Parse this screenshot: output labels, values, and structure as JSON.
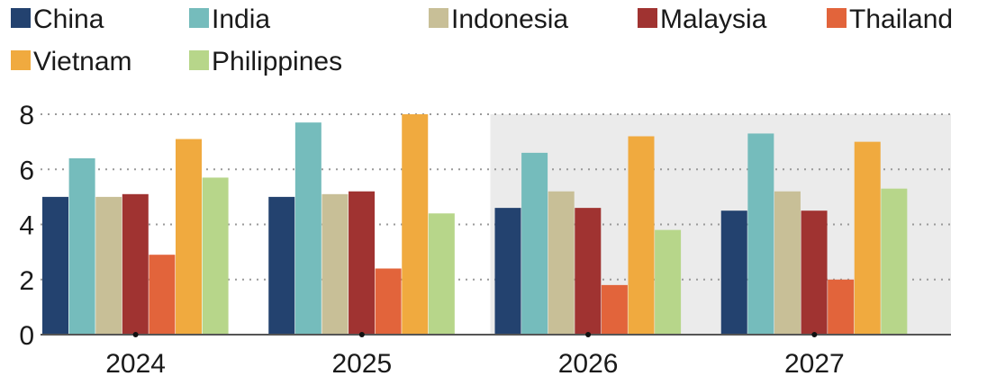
{
  "chart_data": {
    "type": "bar",
    "categories": [
      "2024",
      "2025",
      "2026",
      "2027"
    ],
    "series": [
      {
        "name": "China",
        "color": "#23426f",
        "values": [
          5.0,
          5.0,
          4.6,
          4.5
        ]
      },
      {
        "name": "India",
        "color": "#75bcbc",
        "values": [
          6.4,
          7.7,
          6.6,
          7.3
        ]
      },
      {
        "name": "Indonesia",
        "color": "#c8bf97",
        "values": [
          5.0,
          5.1,
          5.2,
          5.2
        ]
      },
      {
        "name": "Malaysia",
        "color": "#a03331",
        "values": [
          5.1,
          5.2,
          4.6,
          4.5
        ]
      },
      {
        "name": "Thailand",
        "color": "#e2643b",
        "values": [
          2.9,
          2.4,
          1.8,
          2.0
        ]
      },
      {
        "name": "Vietnam",
        "color": "#f0aa3f",
        "values": [
          7.1,
          8.0,
          7.2,
          7.0
        ]
      },
      {
        "name": "Philippines",
        "color": "#b7d68a",
        "values": [
          5.7,
          4.4,
          3.8,
          5.3
        ]
      }
    ],
    "yticks": [
      "0",
      "2",
      "4",
      "6",
      "8"
    ],
    "ylim": [
      0,
      8
    ],
    "shaded_categories": [
      "2026",
      "2027"
    ],
    "shade_color": "#ebebeb",
    "grid": true,
    "legend_position": "top"
  }
}
